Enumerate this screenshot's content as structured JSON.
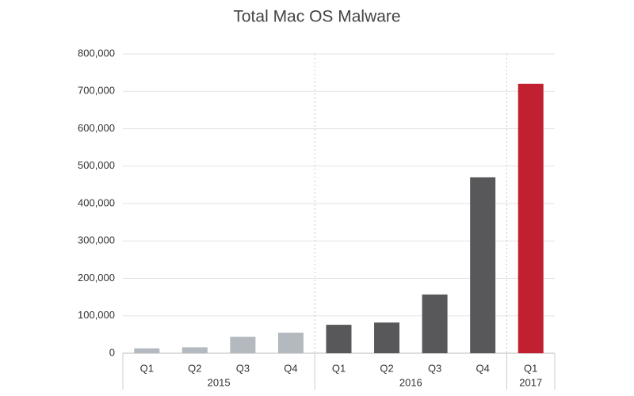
{
  "chart_data": {
    "type": "bar",
    "title": "Total Mac OS Malware",
    "groups": [
      {
        "name": "2015",
        "color": "#b3b9be",
        "categories": [
          "Q1",
          "Q2",
          "Q3",
          "Q4"
        ],
        "values": [
          13000,
          16000,
          44000,
          55000
        ]
      },
      {
        "name": "2016",
        "color": "#58585a",
        "categories": [
          "Q1",
          "Q2",
          "Q3",
          "Q4"
        ],
        "values": [
          76000,
          82000,
          157000,
          470000
        ]
      },
      {
        "name": "2017",
        "color": "#c0202f",
        "categories": [
          "Q1"
        ],
        "values": [
          720000
        ]
      }
    ],
    "ylim": [
      0,
      800000
    ],
    "yticks": [
      0,
      {
        "value": 100000,
        "label": "100,000"
      },
      {
        "value": 200000,
        "label": "200,000"
      },
      {
        "value": 300000,
        "label": "300,000"
      },
      {
        "value": 400000,
        "label": "400,000"
      },
      {
        "value": 500000,
        "label": "500,000"
      },
      {
        "value": 600000,
        "label": "600,000"
      },
      {
        "value": 700000,
        "label": "700,000"
      },
      {
        "value": 800000,
        "label": "800,000"
      }
    ],
    "grid": true
  }
}
